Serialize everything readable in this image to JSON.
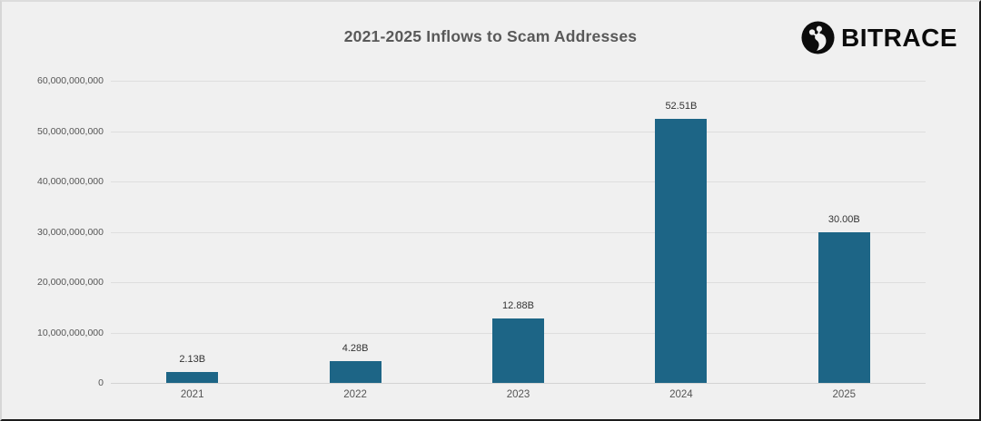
{
  "header": {
    "title": "2021-2025 Inflows to Scam Addresses",
    "brand": "BITRACE",
    "brand_icon": "bitrace-circle-node-icon"
  },
  "colors": {
    "background": "#f0f0f0",
    "bar": "#1d6586",
    "gridline": "#dedede",
    "title_text": "#595959",
    "axis_text": "#555555",
    "value_text": "#333333",
    "brand_black": "#0c0c0c"
  },
  "chart_data": {
    "type": "bar",
    "title": "2021-2025 Inflows to Scam Addresses",
    "categories": [
      "2021",
      "2022",
      "2023",
      "2024",
      "2025"
    ],
    "values": [
      2130000000,
      4280000000,
      12880000000,
      52510000000,
      30000000000
    ],
    "value_labels": [
      "2.13B",
      "4.28B",
      "12.88B",
      "52.51B",
      "30.00B"
    ],
    "y_tick_labels": [
      "60,000,000,000",
      "50,000,000,000",
      "40,000,000,000",
      "30,000,000,000",
      "20,000,000,000",
      "10,000,000,000",
      "0"
    ],
    "ylim": [
      0,
      60000000000
    ],
    "xlabel": "",
    "ylabel": "",
    "grid": "horizontal",
    "legend": "none",
    "bar_color": "#1d6586"
  }
}
